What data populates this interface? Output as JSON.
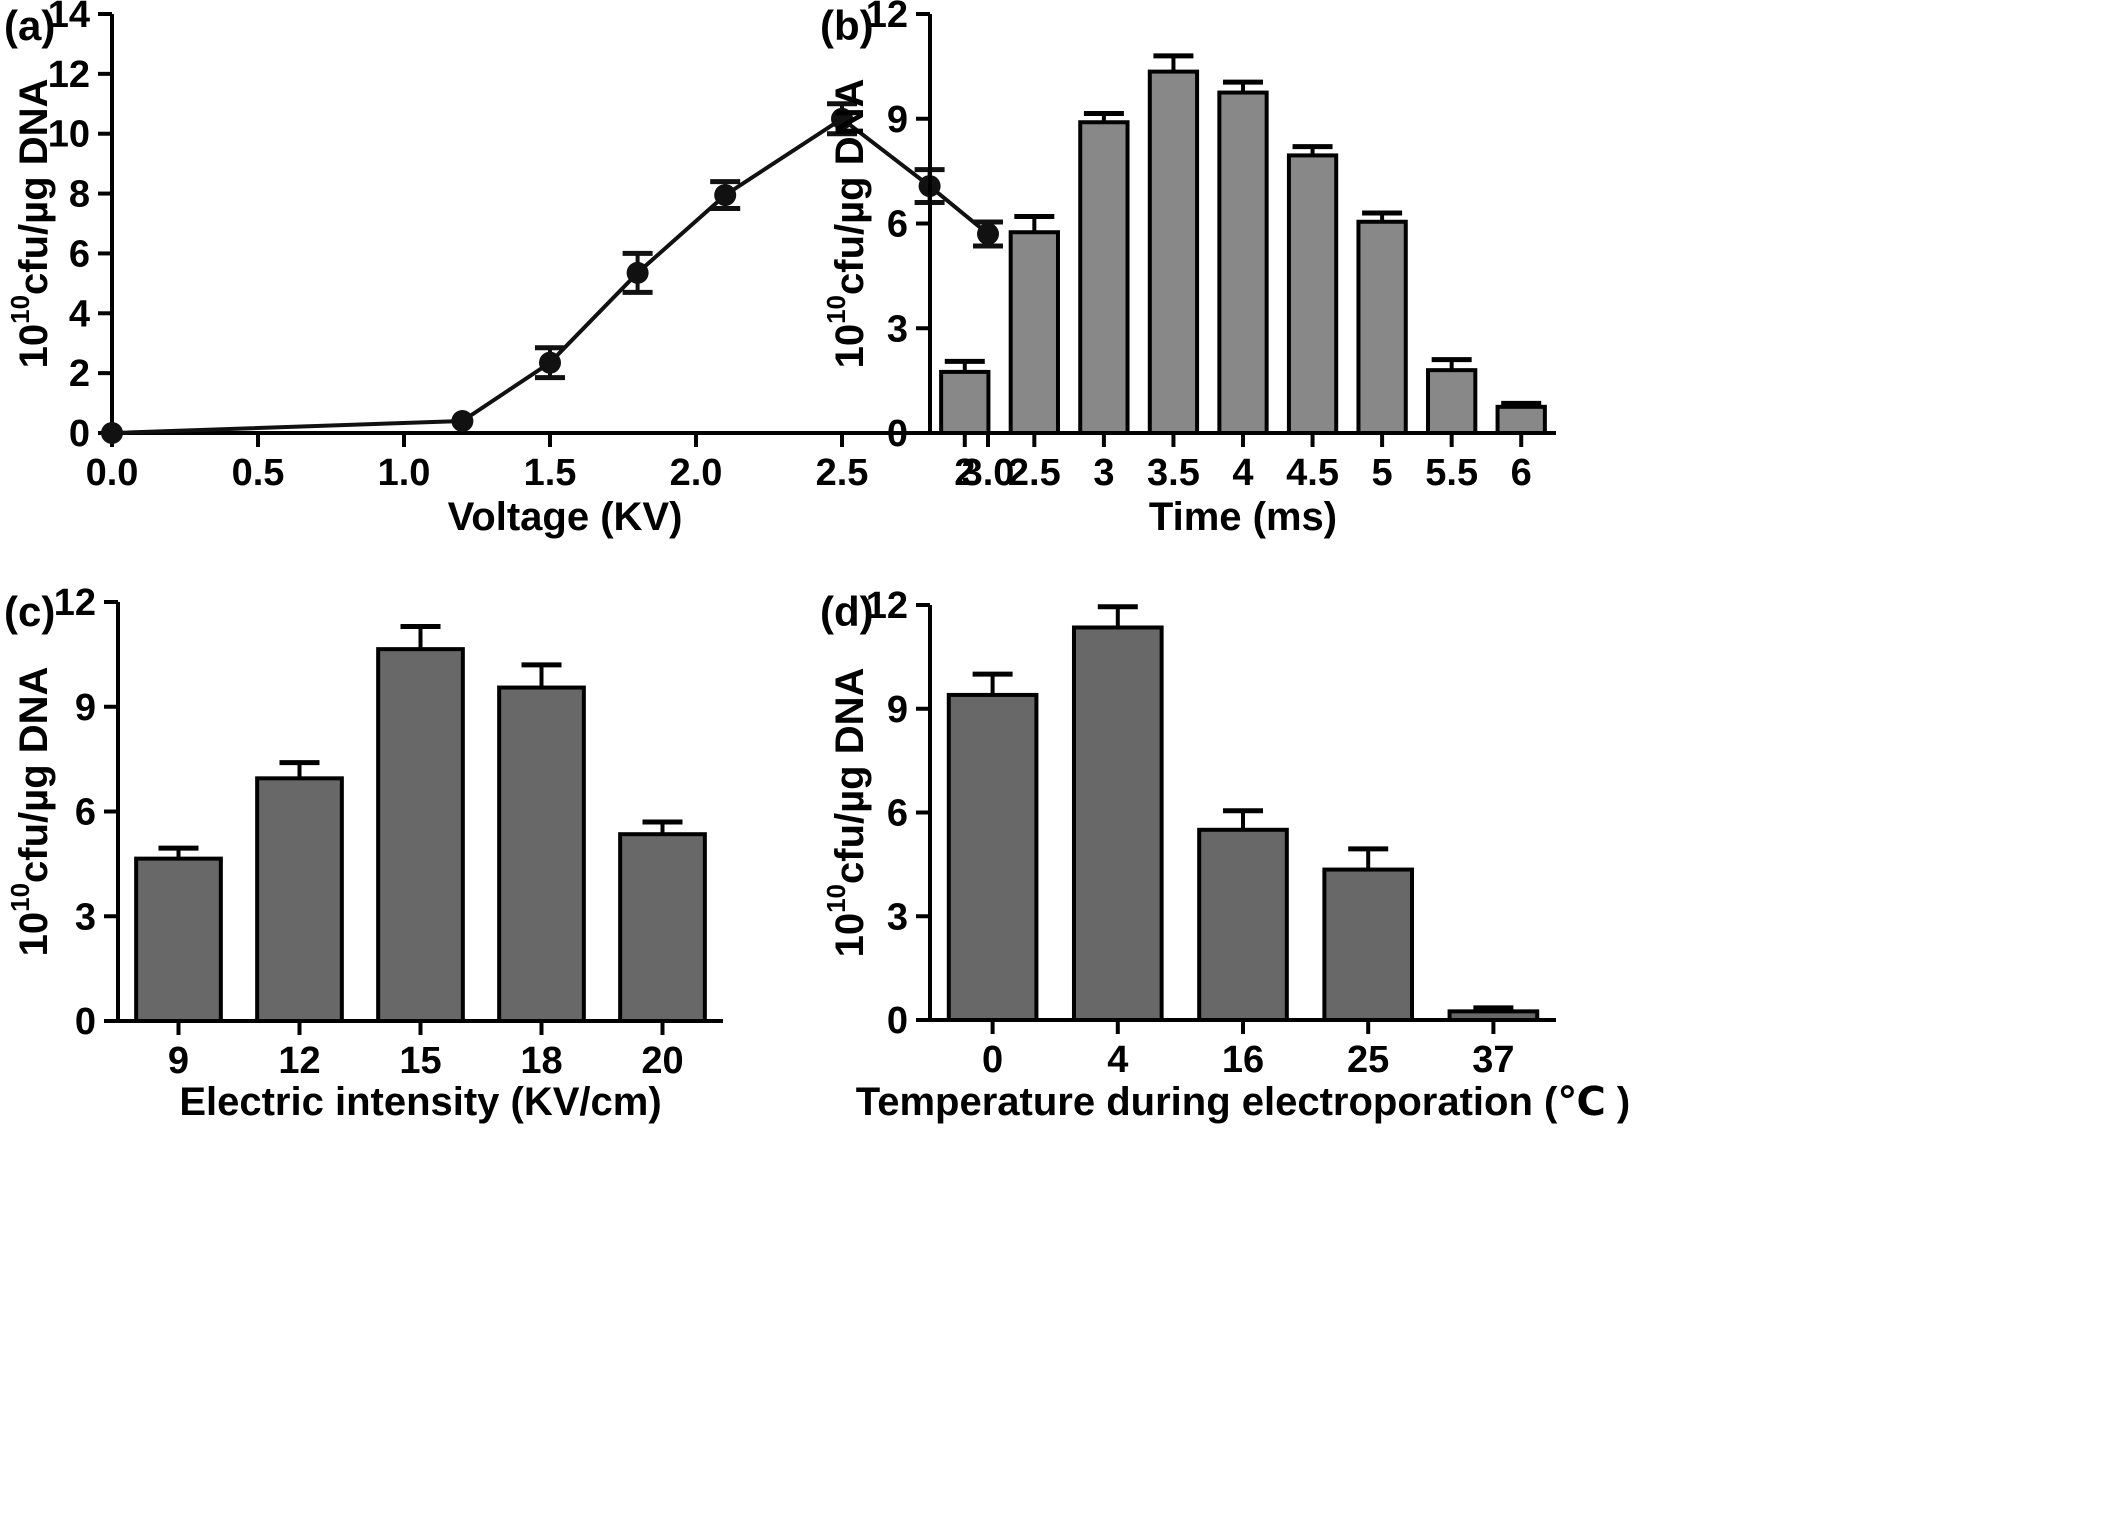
{
  "figure": {
    "panels": [
      {
        "id": "a",
        "label": "(a)",
        "chart_data": {
          "type": "line",
          "x": [
            0.0,
            1.2,
            1.5,
            1.8,
            2.1,
            2.5,
            2.8,
            3.0
          ],
          "series": [
            {
              "values": [
                0.0,
                0.4,
                2.35,
                5.35,
                7.95,
                10.5,
                8.25,
                6.65
              ],
              "errors": [
                0.0,
                0.0,
                0.5,
                0.65,
                0.45,
                0.5,
                0.55,
                0.4
              ]
            }
          ],
          "xlabel": "Voltage  (KV)",
          "ylabel_base": "10",
          "ylabel_sup": "10",
          "ylabel_rest": "cfu/µg DNA",
          "xlim": [
            0.0,
            3.0
          ],
          "ylim": [
            0,
            14
          ],
          "xticks": [
            "0.0",
            "0.5",
            "1.0",
            "1.5",
            "2.0",
            "2.5",
            "3.0"
          ],
          "yticks": [
            "0",
            "2",
            "4",
            "6",
            "8",
            "10",
            "12",
            "14"
          ],
          "color": "#111111"
        }
      },
      {
        "id": "b",
        "label": "(b)",
        "chart_data": {
          "type": "bar",
          "categories": [
            "2",
            "2.5",
            "3",
            "3.5",
            "4",
            "4.5",
            "5",
            "5.5",
            "6"
          ],
          "values": [
            1.75,
            5.75,
            8.9,
            10.35,
            9.75,
            7.95,
            6.05,
            1.8,
            0.75
          ],
          "errors": [
            0.3,
            0.45,
            0.25,
            0.45,
            0.3,
            0.25,
            0.25,
            0.3,
            0.1
          ],
          "xlabel": "Time (ms)",
          "ylabel_base": "10",
          "ylabel_sup": "10",
          "ylabel_rest": "cfu/µg DNA",
          "ylim": [
            0,
            12
          ],
          "yticks": [
            "0",
            "3",
            "6",
            "9",
            "12"
          ],
          "color": "#888888"
        }
      },
      {
        "id": "c",
        "label": "(c)",
        "chart_data": {
          "type": "bar",
          "categories": [
            "9",
            "12",
            "15",
            "18",
            "20"
          ],
          "values": [
            4.65,
            6.95,
            10.65,
            9.55,
            5.35
          ],
          "errors": [
            0.3,
            0.45,
            0.65,
            0.65,
            0.35
          ],
          "xlabel": "Electric intensity (KV/cm)",
          "ylabel_base": "10",
          "ylabel_sup": "10",
          "ylabel_rest": "cfu/µg DNA",
          "ylim": [
            0,
            12
          ],
          "yticks": [
            "0",
            "3",
            "6",
            "9",
            "12"
          ],
          "color": "#686868"
        }
      },
      {
        "id": "d",
        "label": "(d)",
        "chart_data": {
          "type": "bar",
          "categories": [
            "0",
            "4",
            "16",
            "25",
            "37"
          ],
          "values": [
            9.4,
            11.35,
            5.5,
            4.35,
            0.25
          ],
          "errors": [
            0.6,
            0.6,
            0.55,
            0.6,
            0.1
          ],
          "xlabel": "Temperature during electroporation (℃ )",
          "ylabel_base": "10",
          "ylabel_sup": "10",
          "ylabel_rest": "cfu/µg DNA",
          "ylim": [
            0,
            12
          ],
          "yticks": [
            "0",
            "3",
            "6",
            "9",
            "12"
          ],
          "color": "#686868"
        }
      }
    ]
  }
}
